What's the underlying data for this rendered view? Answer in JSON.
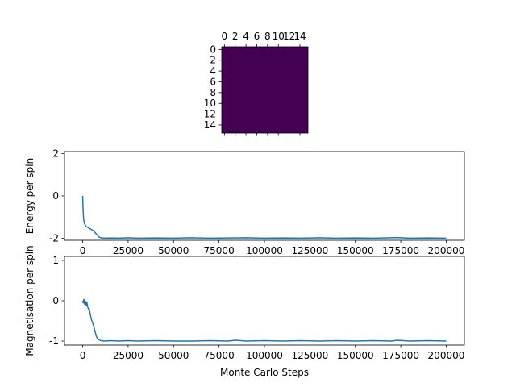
{
  "chart_data": [
    {
      "type": "heatmap",
      "title": "",
      "xlabel": "",
      "ylabel": "",
      "rows": 16,
      "cols": 16,
      "value": "uniform",
      "color": "#440154",
      "x_ticks": [
        "0",
        "2",
        "4",
        "6",
        "8",
        "10",
        "12",
        "14"
      ],
      "y_ticks": [
        "0",
        "2",
        "4",
        "6",
        "8",
        "10",
        "12",
        "14"
      ]
    },
    {
      "type": "line",
      "title": "",
      "xlabel": "",
      "ylabel": "Energy per spin",
      "xlim": [
        -10000,
        210000
      ],
      "ylim": [
        -2.1,
        2.1
      ],
      "x_ticks": [
        0,
        25000,
        50000,
        75000,
        100000,
        125000,
        150000,
        175000,
        200000
      ],
      "y_ticks": [
        -2,
        0,
        2
      ],
      "grid": false,
      "color": "#1f77b4",
      "x": [
        0,
        200,
        500,
        1000,
        1500,
        2000,
        3000,
        4000,
        5000,
        6000,
        7000,
        8000,
        9000,
        10000,
        12000,
        15000,
        20000,
        25000,
        30000,
        40000,
        50000,
        60000,
        70000,
        80000,
        90000,
        100000,
        110000,
        120000,
        130000,
        140000,
        150000,
        160000,
        170000,
        173000,
        180000,
        190000,
        200000
      ],
      "y": [
        0,
        -0.6,
        -1.1,
        -1.3,
        -1.4,
        -1.45,
        -1.5,
        -1.55,
        -1.6,
        -1.65,
        -1.75,
        -1.85,
        -1.95,
        -1.98,
        -2.0,
        -1.99,
        -2.0,
        -1.98,
        -2.0,
        -1.99,
        -2.0,
        -1.98,
        -2.0,
        -1.99,
        -1.98,
        -2.0,
        -1.99,
        -2.0,
        -1.98,
        -2.0,
        -1.99,
        -2.0,
        -1.98,
        -1.97,
        -2.0,
        -1.99,
        -2.0
      ]
    },
    {
      "type": "line",
      "title": "",
      "xlabel": "Monte Carlo Steps",
      "ylabel": "Magnetisation per spin",
      "xlim": [
        -10000,
        210000
      ],
      "ylim": [
        -1.1,
        1.1
      ],
      "x_ticks": [
        0,
        25000,
        50000,
        75000,
        100000,
        125000,
        150000,
        175000,
        200000
      ],
      "y_ticks": [
        -1,
        0,
        1
      ],
      "grid": false,
      "color": "#1f77b4",
      "x": [
        0,
        300,
        600,
        900,
        1200,
        1500,
        1800,
        2100,
        2400,
        2700,
        3000,
        3300,
        3600,
        4000,
        4500,
        5000,
        5500,
        6000,
        6500,
        7000,
        7500,
        8000,
        9000,
        10000,
        12000,
        15000,
        20000,
        25000,
        30000,
        40000,
        50000,
        60000,
        70000,
        80000,
        84000,
        90000,
        100000,
        110000,
        120000,
        130000,
        140000,
        150000,
        160000,
        170000,
        173000,
        180000,
        190000,
        200000
      ],
      "y": [
        0,
        -0.05,
        0.03,
        -0.08,
        0.02,
        -0.1,
        -0.02,
        -0.12,
        -0.05,
        -0.15,
        -0.18,
        -0.22,
        -0.2,
        -0.3,
        -0.4,
        -0.5,
        -0.55,
        -0.62,
        -0.7,
        -0.8,
        -0.88,
        -0.93,
        -0.97,
        -0.99,
        -1.0,
        -0.99,
        -1.0,
        -0.99,
        -1.0,
        -0.99,
        -1.0,
        -1.0,
        -0.99,
        -1.0,
        -0.98,
        -1.0,
        -0.99,
        -1.0,
        -0.99,
        -1.0,
        -0.99,
        -1.0,
        -0.99,
        -1.0,
        -0.98,
        -1.0,
        -0.99,
        -1.0
      ]
    }
  ]
}
